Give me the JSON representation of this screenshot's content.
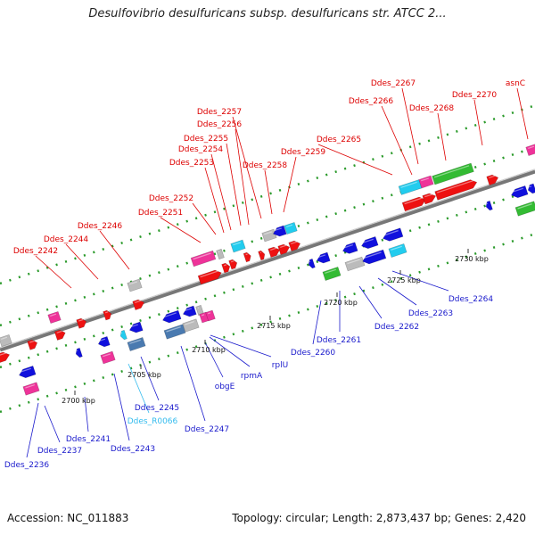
{
  "title": "Desulfovibrio desulfuricans subsp. desulfuricans str. ATCC 2...",
  "footer": {
    "accession": "Accession: NC_011883",
    "stats": "Topology: circular; Length: 2,873,437 bp; Genes: 2,420"
  },
  "colors": {
    "forward_label": "#dd0000",
    "reverse_label": "#1a1acc",
    "rna_label": "#33bbee",
    "gene_red": "#ee1111",
    "gene_blue": "#1010dd",
    "gene_pink": "#ee3399",
    "gene_cyan": "#22ccee",
    "gene_green": "#33bb33",
    "gene_gray": "#bbbbbb",
    "gene_steel": "#4a7ab0",
    "backbone": "#888888"
  },
  "ticks": [
    "2700 kbp",
    "2705 kbp",
    "2710 kbp",
    "2715 kbp",
    "2720 kbp",
    "2725 kbp",
    "2730 kbp"
  ],
  "forward_labels": [
    "Ddes_2242",
    "Ddes_2244",
    "Ddes_2246",
    "Ddes_2251",
    "Ddes_2252",
    "Ddes_2253",
    "Ddes_2254",
    "Ddes_2255",
    "Ddes_2256",
    "Ddes_2257",
    "Ddes_2258",
    "Ddes_2259",
    "Ddes_2265",
    "Ddes_2266",
    "Ddes_2267",
    "Ddes_2268",
    "Ddes_2270",
    "asnC"
  ],
  "reverse_labels": [
    "Ddes_2236",
    "Ddes_2237",
    "Ddes_2241",
    "Ddes_2243",
    "Ddes_R0066",
    "Ddes_2245",
    "Ddes_2247",
    "obgE",
    "rpmA",
    "rplU",
    "Ddes_2260",
    "Ddes_2261",
    "Ddes_2262",
    "Ddes_2263",
    "Ddes_2264"
  ]
}
